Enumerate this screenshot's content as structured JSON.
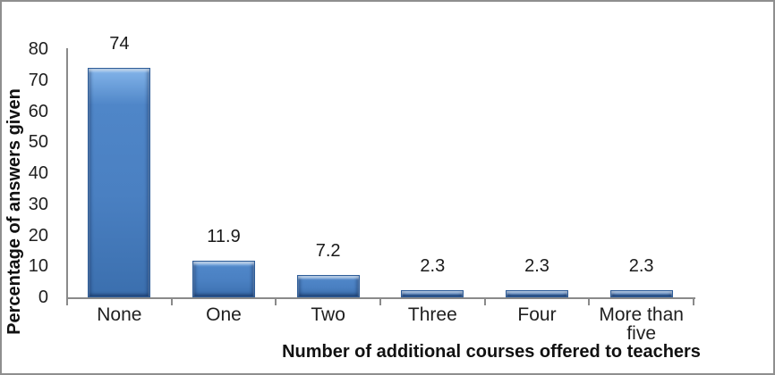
{
  "chart_data": {
    "type": "bar",
    "categories": [
      "None",
      "One",
      "Two",
      "Three",
      "Four",
      "More than five"
    ],
    "values": [
      74,
      11.9,
      7.2,
      2.3,
      2.3,
      2.3
    ],
    "value_labels": [
      "74",
      "11.9",
      "7.2",
      "2.3",
      "2.3",
      "2.3"
    ],
    "title": "",
    "xlabel": "Number of additional courses offered to teachers",
    "ylabel": "Percentage of answers given",
    "ylim": [
      0,
      80
    ],
    "yticks": [
      0,
      10,
      20,
      30,
      40,
      50,
      60,
      70,
      80
    ],
    "grid": false,
    "legend": null,
    "bar_style": "beveled-3d",
    "colors": {
      "bar_fill": "#4a80c2",
      "bar_highlight": "#84b5ea",
      "bar_edge": "#2e5d99",
      "axis_line": "#8a8a8a",
      "frame_border": "#8f8f8f",
      "text": "#1a1a1a",
      "background": "#ffffff"
    }
  }
}
